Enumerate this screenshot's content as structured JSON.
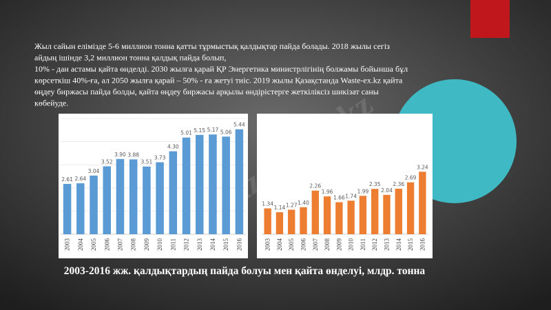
{
  "slide": {
    "text": [
      "Жыл сайын елімізде 5-6 миллион тонна қатты тұрмыстық қалдықтар пайда болады. 2018 жылы сегіз",
      "айдың ішінде 3,2 миллион тонна қалдық пайда болып,",
      "10% - дан астамы қайта өнделді. 2030 жылға қарай ҚР Энергетика министрлігінің болжамы бойынша бұл",
      "көрсеткіш 40%-ға, ал 2050 жылға қарай – 50% - ға жетуі тиіс. 2019 жылы Қазақстанда Waste-ex.kz қайта",
      "өңдеу биржасы пайда болды, қайта өңдеу биржасы арқылы өндірістерге жеткіліксіз шикізат саны",
      "көбейуде."
    ],
    "caption": "2003-2016 жж. қалдықтардың пайда болуы мен қайта өнделуі, млдр. тонна",
    "watermark": "Stud.kz - Stud.kz"
  },
  "chart_data": [
    {
      "type": "bar",
      "color": "#5b9bd5",
      "grid": true,
      "ylim": [
        0,
        6
      ],
      "categories": [
        "2003",
        "2004",
        "2005",
        "2006",
        "2007",
        "2008",
        "2009",
        "2010",
        "2011",
        "2012",
        "2013",
        "2014",
        "2015",
        "2016"
      ],
      "values": [
        2.61,
        2.64,
        3.04,
        3.52,
        3.9,
        3.88,
        3.51,
        3.73,
        4.3,
        5.01,
        5.15,
        5.17,
        5.06,
        5.44
      ],
      "value_labels": [
        "2.61",
        "2.64",
        "3.04",
        "3.52",
        "3.90",
        "3.88",
        "3.51",
        "3.73",
        "4.30",
        "5.01",
        "5.15",
        "5.17",
        "5.06",
        "5.44"
      ]
    },
    {
      "type": "bar",
      "color": "#ed7d31",
      "grid": false,
      "ylim": [
        0,
        6
      ],
      "categories": [
        "2003",
        "2004",
        "2005",
        "2006",
        "2007",
        "2008",
        "2009",
        "2010",
        "2011",
        "2012",
        "2013",
        "2014",
        "2015",
        "2016"
      ],
      "values": [
        1.34,
        1.14,
        1.27,
        1.4,
        2.26,
        1.96,
        1.66,
        1.74,
        1.99,
        2.35,
        2.04,
        2.36,
        2.69,
        3.24
      ],
      "value_labels": [
        "1.34",
        "1.14",
        "1.27",
        "1.40",
        "2.26",
        "1.96",
        "1.66",
        "1.74",
        "1.99",
        "2.35",
        "2.04",
        "2.36",
        "2.69",
        "3.24"
      ]
    }
  ]
}
